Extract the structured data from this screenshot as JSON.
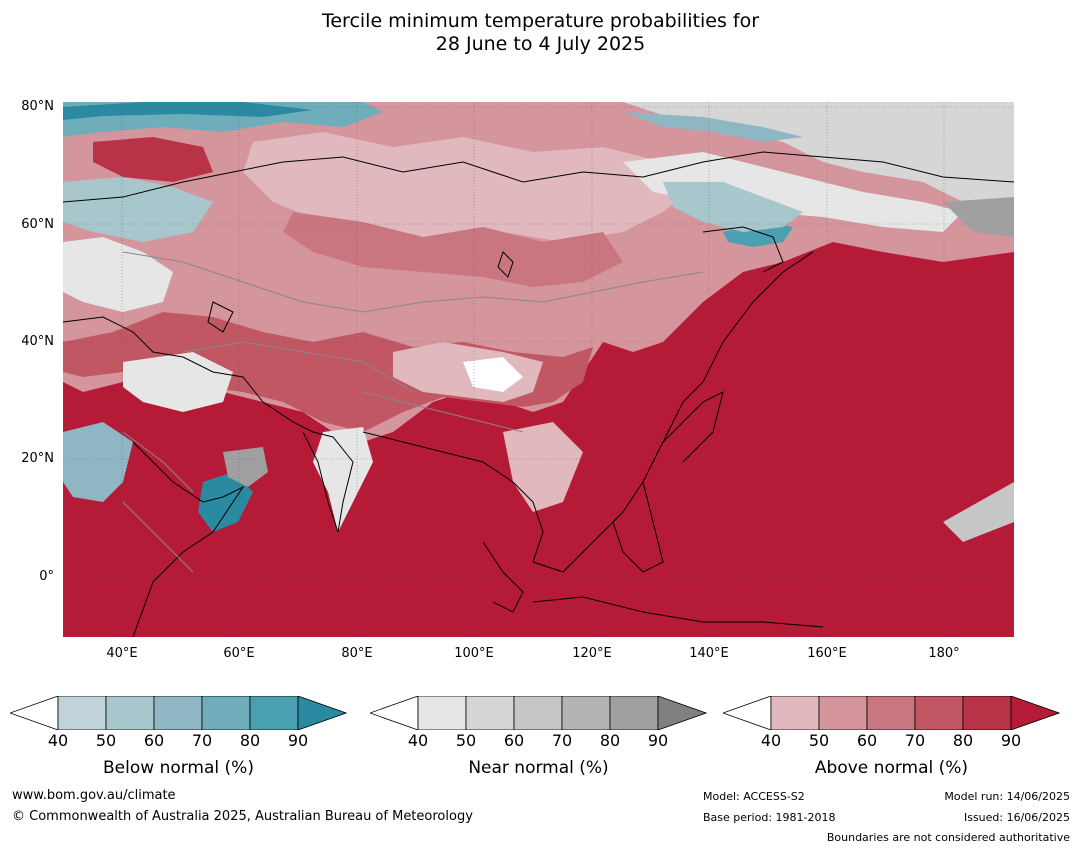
{
  "title": {
    "line1": "Tercile minimum temperature probabilities for",
    "line2": "28 June to 4 July 2025"
  },
  "map": {
    "lat_labels": [
      "80°N",
      "60°N",
      "40°N",
      "20°N",
      "0°"
    ],
    "lon_labels": [
      "40°E",
      "60°E",
      "80°E",
      "100°E",
      "120°E",
      "140°E",
      "160°E",
      "180°"
    ],
    "colors": {
      "below": [
        "#ffffff",
        "#c0d3da",
        "#a7c7cc",
        "#8fb7c3",
        "#6fadba",
        "#4a9fb0",
        "#2a8aa2"
      ],
      "near": [
        "#ffffff",
        "#e6e6e6",
        "#d6d6d6",
        "#c6c6c6",
        "#b4b4b4",
        "#a0a0a0",
        "#808080"
      ],
      "above": [
        "#ffffff",
        "#e0b8bd",
        "#d4959c",
        "#c97680",
        "#c05763",
        "#b93347",
        "#b51b37"
      ]
    }
  },
  "legends": [
    {
      "title": "Below normal (%)",
      "ticks": [
        "40",
        "50",
        "60",
        "70",
        "80",
        "90"
      ],
      "scheme": "below"
    },
    {
      "title": "Near normal (%)",
      "ticks": [
        "40",
        "50",
        "60",
        "70",
        "80",
        "90"
      ],
      "scheme": "near"
    },
    {
      "title": "Above normal (%)",
      "ticks": [
        "40",
        "50",
        "60",
        "70",
        "80",
        "90"
      ],
      "scheme": "above"
    }
  ],
  "footer": {
    "website": "www.bom.gov.au/climate",
    "copyright": "© Commonwealth of Australia 2025, Australian Bureau of Meteorology",
    "model": "Model: ACCESS-S2",
    "base_period": "Base period: 1981-2018",
    "model_run": "Model run: 14/06/2025",
    "issued": "Issued: 16/06/2025",
    "disclaimer": "Boundaries are not considered authoritative"
  }
}
